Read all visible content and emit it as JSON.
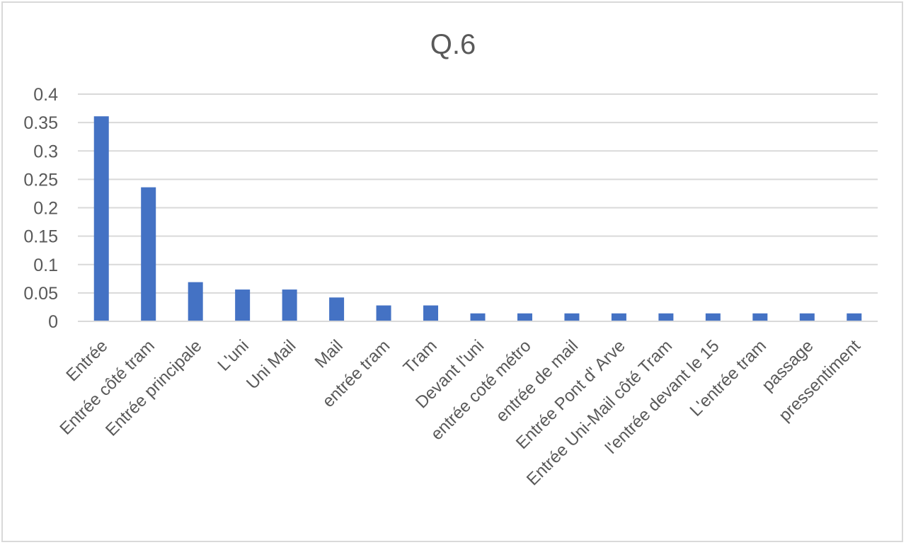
{
  "chart_data": {
    "type": "bar",
    "title": "Q.6",
    "xlabel": "",
    "ylabel": "",
    "ylim": [
      0,
      0.4
    ],
    "yticks": [
      "0",
      "0.05",
      "0.1",
      "0.15",
      "0.2",
      "0.25",
      "0.3",
      "0.35",
      "0.4"
    ],
    "grid": true,
    "legend": "none",
    "bar_color": "#4472c4",
    "categories": [
      "Entrée",
      "Entrée côté tram",
      "Entrée principale",
      "L'uni",
      "Uni Mail",
      "Mail",
      "entrée tram",
      "Tram",
      "Devant l'uni",
      "entrée coté métro",
      "entrée de mail",
      "Entrée Pont d' Arve",
      "Entrée Uni-Mail côté Tram",
      "l'entrée devant le 15",
      "L'entrée tram",
      "passage",
      "pressentiment"
    ],
    "values": [
      0.361,
      0.236,
      0.069,
      0.056,
      0.056,
      0.042,
      0.028,
      0.028,
      0.014,
      0.014,
      0.014,
      0.014,
      0.014,
      0.014,
      0.014,
      0.014,
      0.014
    ]
  }
}
